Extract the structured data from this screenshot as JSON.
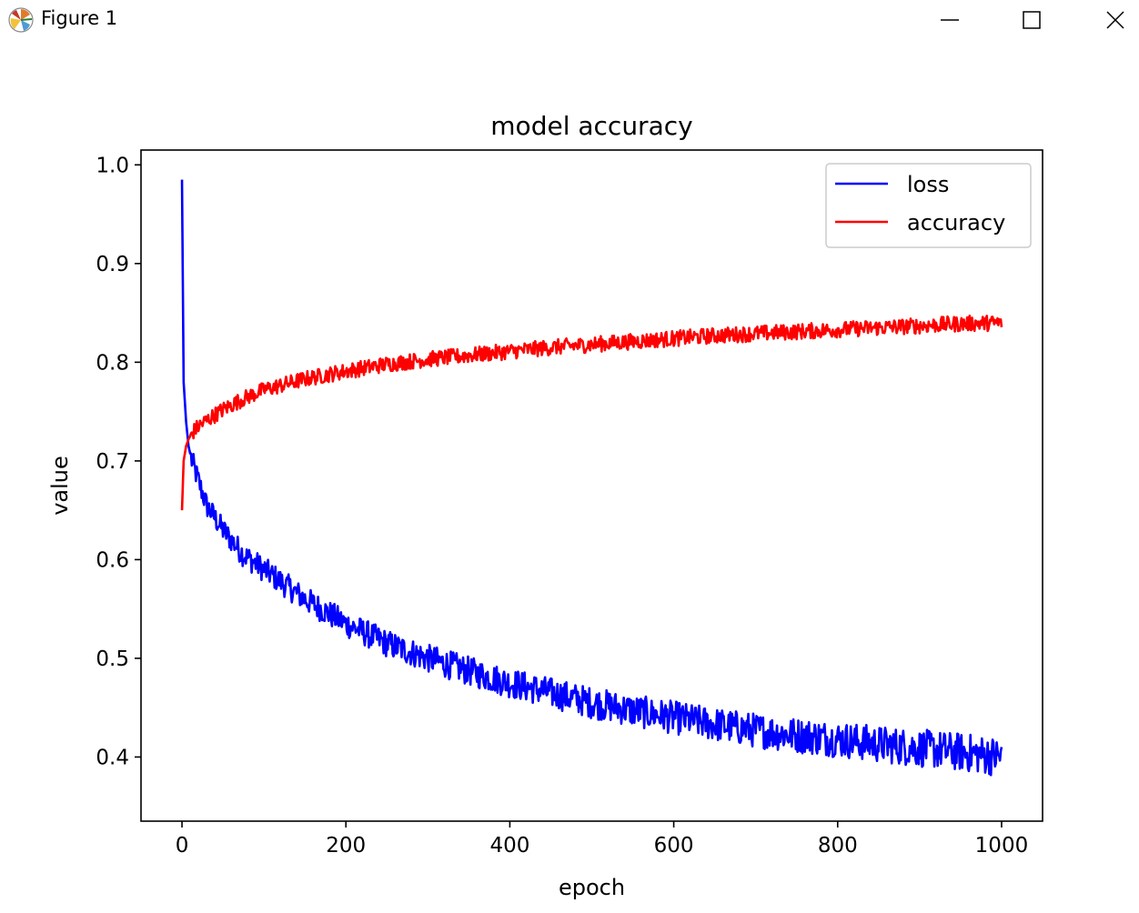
{
  "window": {
    "title": "Figure 1",
    "app_icon": "matplotlib-icon",
    "controls": {
      "minimize_icon": "minimize-icon",
      "maximize_icon": "maximize-icon",
      "close_icon": "close-icon"
    }
  },
  "chart_data": {
    "type": "line",
    "title": "model accuracy",
    "xlabel": "epoch",
    "ylabel": "value",
    "xlim": [
      -50,
      1050
    ],
    "ylim": [
      0.335,
      1.015
    ],
    "xticks": [
      0,
      200,
      400,
      600,
      800,
      1000
    ],
    "xtick_labels": [
      "0",
      "200",
      "400",
      "600",
      "800",
      "1000"
    ],
    "yticks": [
      0.4,
      0.5,
      0.6,
      0.7,
      0.8,
      0.9,
      1.0
    ],
    "ytick_labels": [
      "0.4",
      "0.5",
      "0.6",
      "0.7",
      "0.8",
      "0.9",
      "1.0"
    ],
    "grid": false,
    "legend_position": "top-right",
    "series": [
      {
        "name": "loss",
        "color": "#0000ff",
        "x": [
          0,
          2,
          5,
          8,
          12,
          20,
          30,
          50,
          75,
          100,
          150,
          200,
          250,
          300,
          350,
          400,
          450,
          500,
          550,
          600,
          650,
          700,
          750,
          800,
          850,
          900,
          950,
          1000
        ],
        "y": [
          0.985,
          0.78,
          0.74,
          0.715,
          0.7,
          0.68,
          0.655,
          0.63,
          0.605,
          0.59,
          0.56,
          0.535,
          0.515,
          0.5,
          0.487,
          0.475,
          0.465,
          0.455,
          0.447,
          0.44,
          0.433,
          0.427,
          0.422,
          0.418,
          0.413,
          0.409,
          0.405,
          0.4
        ]
      },
      {
        "name": "accuracy",
        "color": "#ff0000",
        "x": [
          0,
          2,
          5,
          8,
          12,
          20,
          30,
          50,
          75,
          100,
          150,
          200,
          250,
          300,
          350,
          400,
          450,
          500,
          550,
          600,
          650,
          700,
          750,
          800,
          850,
          900,
          950,
          1000
        ],
        "y": [
          0.65,
          0.7,
          0.715,
          0.722,
          0.728,
          0.735,
          0.741,
          0.752,
          0.763,
          0.772,
          0.783,
          0.791,
          0.798,
          0.803,
          0.807,
          0.811,
          0.815,
          0.818,
          0.821,
          0.824,
          0.827,
          0.829,
          0.831,
          0.833,
          0.835,
          0.837,
          0.839,
          0.84
        ]
      }
    ]
  }
}
